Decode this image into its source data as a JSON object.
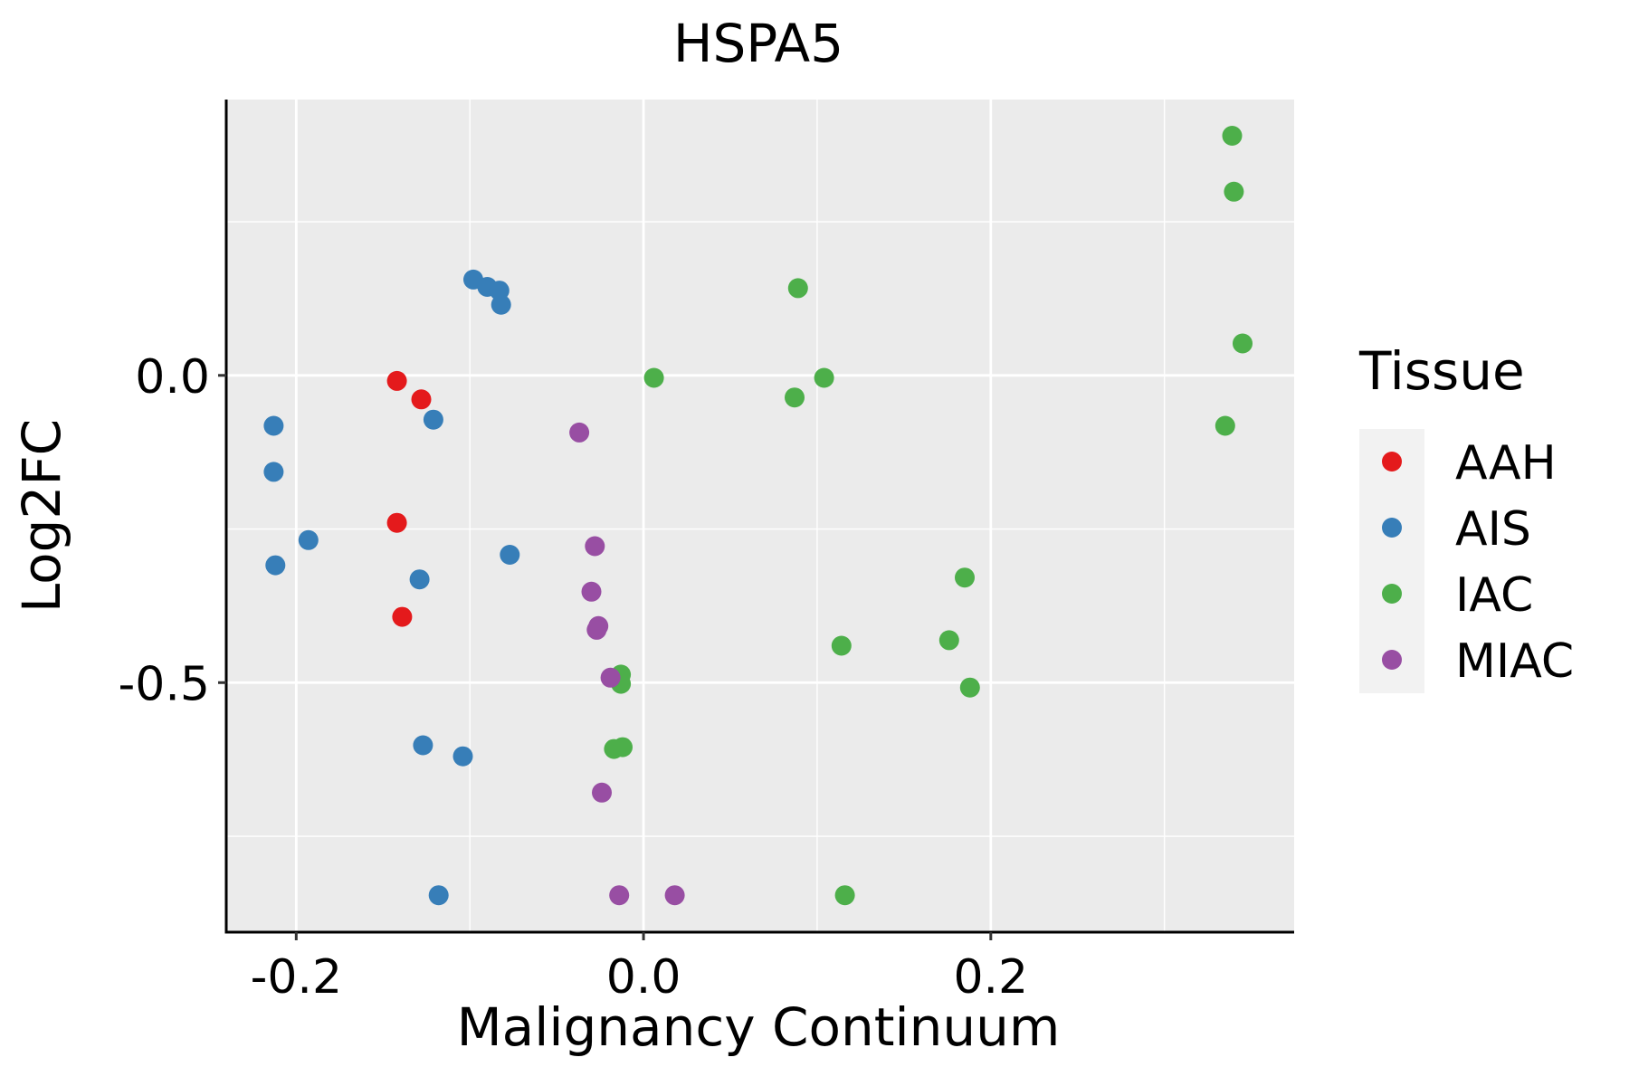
{
  "chart_data": {
    "type": "scatter",
    "title": "HSPA5",
    "xlabel": "Malignancy Continuum",
    "ylabel": "Log2FC",
    "xlim": [
      -0.2403,
      0.3747
    ],
    "ylim": [
      -0.9061,
      0.4489
    ],
    "xticks": [
      -0.2,
      0.0,
      0.2
    ],
    "xtick_labels": [
      "-0.2",
      "0.0",
      "0.2"
    ],
    "xminor": [
      -0.1,
      0.1,
      0.3
    ],
    "yticks": [
      -0.5,
      0.0
    ],
    "ytick_labels": [
      "-0.5",
      "0.0"
    ],
    "yminor": [
      -0.75,
      -0.25,
      0.25
    ],
    "legend": {
      "title": "Tissue",
      "position": "right"
    },
    "series": [
      {
        "name": "AAH",
        "color": "#E41A1C",
        "points": [
          [
            -0.142,
            -0.009
          ],
          [
            -0.128,
            -0.039
          ],
          [
            -0.142,
            -0.24
          ],
          [
            -0.139,
            -0.393
          ]
        ]
      },
      {
        "name": "AIS",
        "color": "#377EB8",
        "points": [
          [
            -0.098,
            0.156
          ],
          [
            -0.09,
            0.144
          ],
          [
            -0.083,
            0.138
          ],
          [
            -0.082,
            0.115
          ],
          [
            -0.121,
            -0.072
          ],
          [
            -0.213,
            -0.082
          ],
          [
            -0.213,
            -0.157
          ],
          [
            -0.193,
            -0.268
          ],
          [
            -0.212,
            -0.309
          ],
          [
            -0.129,
            -0.332
          ],
          [
            -0.077,
            -0.292
          ],
          [
            -0.127,
            -0.602
          ],
          [
            -0.104,
            -0.62
          ],
          [
            -0.118,
            -0.846
          ]
        ]
      },
      {
        "name": "IAC",
        "color": "#4DAF4A",
        "points": [
          [
            0.339,
            0.39
          ],
          [
            0.34,
            0.299
          ],
          [
            0.089,
            0.142
          ],
          [
            0.345,
            0.052
          ],
          [
            0.006,
            -0.004
          ],
          [
            0.104,
            -0.004
          ],
          [
            0.087,
            -0.036
          ],
          [
            0.335,
            -0.082
          ],
          [
            0.185,
            -0.329
          ],
          [
            0.176,
            -0.431
          ],
          [
            0.114,
            -0.44
          ],
          [
            0.188,
            -0.508
          ],
          [
            -0.013,
            -0.487
          ],
          [
            -0.013,
            -0.502
          ],
          [
            -0.017,
            -0.608
          ],
          [
            -0.012,
            -0.605
          ],
          [
            0.116,
            -0.846
          ]
        ]
      },
      {
        "name": "MIAC",
        "color": "#984EA3",
        "points": [
          [
            -0.037,
            -0.093
          ],
          [
            -0.028,
            -0.278
          ],
          [
            -0.03,
            -0.352
          ],
          [
            -0.026,
            -0.408
          ],
          [
            -0.027,
            -0.414
          ],
          [
            -0.019,
            -0.492
          ],
          [
            -0.024,
            -0.679
          ],
          [
            -0.014,
            -0.846
          ],
          [
            0.018,
            -0.846
          ]
        ]
      }
    ]
  }
}
